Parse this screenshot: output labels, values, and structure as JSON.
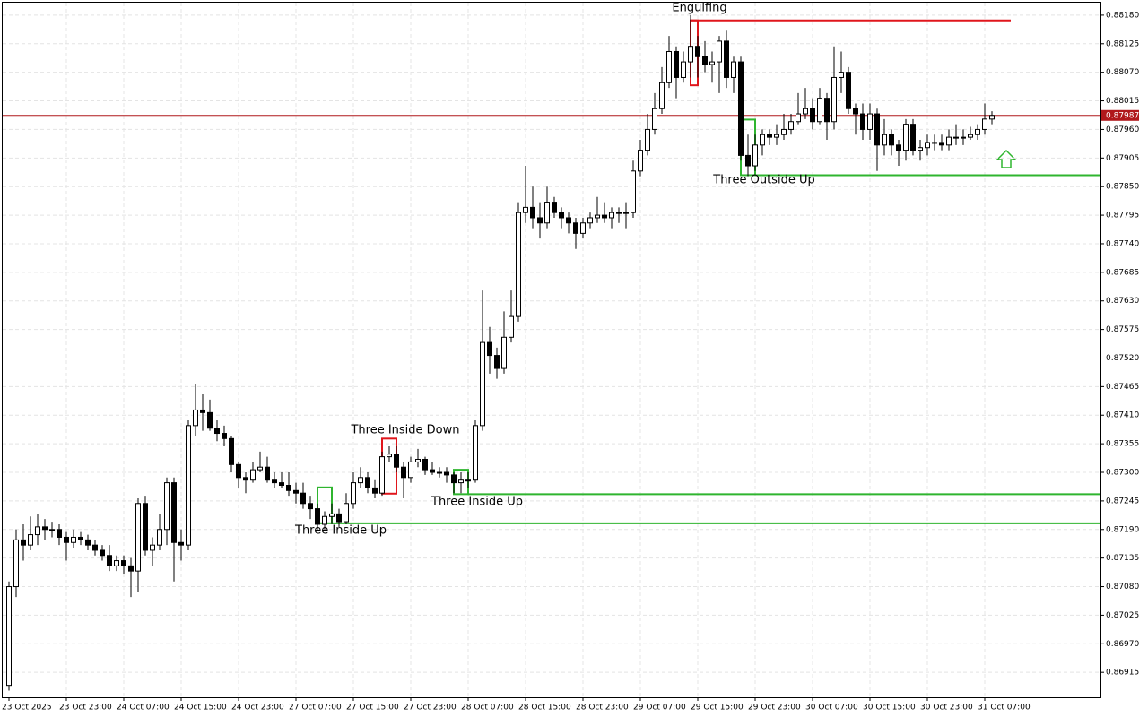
{
  "chart_data": {
    "type": "candlestick",
    "candles": [
      [
        0.8689,
        0.8709,
        0.8688,
        0.8708
      ],
      [
        0.8708,
        0.8719,
        0.8706,
        0.8717
      ],
      [
        0.8717,
        0.872,
        0.8713,
        0.8716
      ],
      [
        0.8716,
        0.87215,
        0.8715,
        0.8718
      ],
      [
        0.8718,
        0.8722,
        0.8716,
        0.87195
      ],
      [
        0.87195,
        0.8721,
        0.8717,
        0.8719
      ],
      [
        0.8719,
        0.87205,
        0.87175,
        0.8719
      ],
      [
        0.8719,
        0.872,
        0.8716,
        0.87175
      ],
      [
        0.87175,
        0.87185,
        0.8713,
        0.87165
      ],
      [
        0.87165,
        0.8719,
        0.87155,
        0.87175
      ],
      [
        0.87175,
        0.87185,
        0.8716,
        0.8717
      ],
      [
        0.8717,
        0.8718,
        0.8715,
        0.8716
      ],
      [
        0.8716,
        0.8717,
        0.8714,
        0.8715
      ],
      [
        0.8715,
        0.8716,
        0.8713,
        0.8714
      ],
      [
        0.8714,
        0.8716,
        0.8711,
        0.8712
      ],
      [
        0.8712,
        0.8714,
        0.8711,
        0.8713
      ],
      [
        0.8713,
        0.8714,
        0.87105,
        0.8712
      ],
      [
        0.8712,
        0.87135,
        0.8706,
        0.8711
      ],
      [
        0.8711,
        0.8725,
        0.8707,
        0.8724
      ],
      [
        0.8724,
        0.87255,
        0.8714,
        0.8715
      ],
      [
        0.8715,
        0.87175,
        0.8712,
        0.8716
      ],
      [
        0.8716,
        0.8722,
        0.8715,
        0.8719
      ],
      [
        0.8719,
        0.8729,
        0.8716,
        0.8728
      ],
      [
        0.8728,
        0.8729,
        0.8709,
        0.87165
      ],
      [
        0.87165,
        0.8719,
        0.8713,
        0.8716
      ],
      [
        0.8716,
        0.874,
        0.8715,
        0.8739
      ],
      [
        0.8739,
        0.8747,
        0.8737,
        0.8742
      ],
      [
        0.8742,
        0.8745,
        0.8738,
        0.87415
      ],
      [
        0.87415,
        0.8744,
        0.8738,
        0.87385
      ],
      [
        0.87385,
        0.874,
        0.8736,
        0.87375
      ],
      [
        0.87375,
        0.8739,
        0.8735,
        0.87365
      ],
      [
        0.87365,
        0.8737,
        0.873,
        0.87315
      ],
      [
        0.87315,
        0.8732,
        0.8727,
        0.8729
      ],
      [
        0.8729,
        0.873,
        0.8726,
        0.87285
      ],
      [
        0.87285,
        0.8732,
        0.8728,
        0.87305
      ],
      [
        0.87305,
        0.8734,
        0.873,
        0.8731
      ],
      [
        0.8731,
        0.8733,
        0.8728,
        0.87285
      ],
      [
        0.87285,
        0.873,
        0.8727,
        0.8728
      ],
      [
        0.8728,
        0.873,
        0.8727,
        0.87275
      ],
      [
        0.87275,
        0.873,
        0.87255,
        0.87265
      ],
      [
        0.87265,
        0.8728,
        0.8724,
        0.8726
      ],
      [
        0.8726,
        0.8728,
        0.8723,
        0.8724
      ],
      [
        0.8724,
        0.87255,
        0.8721,
        0.8723
      ],
      [
        0.8723,
        0.8724,
        0.8719,
        0.872
      ],
      [
        0.872,
        0.87225,
        0.8719,
        0.87215
      ],
      [
        0.87215,
        0.8724,
        0.872,
        0.8722
      ],
      [
        0.8722,
        0.8723,
        0.87195,
        0.87205
      ],
      [
        0.87205,
        0.8726,
        0.872,
        0.8724
      ],
      [
        0.8724,
        0.873,
        0.8723,
        0.8728
      ],
      [
        0.8728,
        0.8731,
        0.8727,
        0.8729
      ],
      [
        0.8729,
        0.873,
        0.8726,
        0.8727
      ],
      [
        0.8727,
        0.87285,
        0.8725,
        0.8726
      ],
      [
        0.8726,
        0.8734,
        0.87255,
        0.8733
      ],
      [
        0.8733,
        0.8735,
        0.8732,
        0.87335
      ],
      [
        0.87335,
        0.8735,
        0.873,
        0.8731
      ],
      [
        0.8731,
        0.8732,
        0.8725,
        0.8729
      ],
      [
        0.8729,
        0.8733,
        0.8728,
        0.8732
      ],
      [
        0.8732,
        0.87345,
        0.8731,
        0.87325
      ],
      [
        0.87325,
        0.8733,
        0.87295,
        0.87305
      ],
      [
        0.87305,
        0.8732,
        0.87295,
        0.873
      ],
      [
        0.873,
        0.8731,
        0.8729,
        0.873
      ],
      [
        0.873,
        0.8731,
        0.8728,
        0.87295
      ],
      [
        0.87295,
        0.873,
        0.8726,
        0.8728
      ],
      [
        0.8728,
        0.873,
        0.8726,
        0.87285
      ],
      [
        0.87285,
        0.873,
        0.8727,
        0.87285
      ],
      [
        0.87285,
        0.874,
        0.8728,
        0.8739
      ],
      [
        0.8739,
        0.8765,
        0.8738,
        0.8755
      ],
      [
        0.8755,
        0.8758,
        0.8749,
        0.87525
      ],
      [
        0.87525,
        0.8754,
        0.8748,
        0.875
      ],
      [
        0.875,
        0.8761,
        0.8749,
        0.8756
      ],
      [
        0.8756,
        0.8765,
        0.8755,
        0.876
      ],
      [
        0.876,
        0.8782,
        0.8759,
        0.878
      ],
      [
        0.878,
        0.8789,
        0.8778,
        0.8781
      ],
      [
        0.8781,
        0.8785,
        0.8777,
        0.8779
      ],
      [
        0.8779,
        0.8782,
        0.8775,
        0.8778
      ],
      [
        0.8778,
        0.8785,
        0.8777,
        0.8782
      ],
      [
        0.8782,
        0.8783,
        0.8779,
        0.878
      ],
      [
        0.878,
        0.8781,
        0.8777,
        0.8779
      ],
      [
        0.8779,
        0.878,
        0.8776,
        0.8778
      ],
      [
        0.8778,
        0.8779,
        0.8773,
        0.8776
      ],
      [
        0.8776,
        0.8779,
        0.8775,
        0.8778
      ],
      [
        0.8778,
        0.878,
        0.8777,
        0.8779
      ],
      [
        0.8779,
        0.8783,
        0.8778,
        0.87795
      ],
      [
        0.87795,
        0.8782,
        0.8778,
        0.8779
      ],
      [
        0.8779,
        0.8781,
        0.8777,
        0.878
      ],
      [
        0.878,
        0.8781,
        0.8778,
        0.878
      ],
      [
        0.878,
        0.8782,
        0.8777,
        0.878
      ],
      [
        0.878,
        0.879,
        0.8779,
        0.8788
      ],
      [
        0.8788,
        0.8794,
        0.8787,
        0.8792
      ],
      [
        0.8792,
        0.8799,
        0.8791,
        0.8796
      ],
      [
        0.8796,
        0.8803,
        0.8795,
        0.88
      ],
      [
        0.88,
        0.8808,
        0.8799,
        0.8805
      ],
      [
        0.8805,
        0.8814,
        0.8804,
        0.8811
      ],
      [
        0.8811,
        0.8812,
        0.8802,
        0.8806
      ],
      [
        0.8806,
        0.8811,
        0.8805,
        0.8809
      ],
      [
        0.8809,
        0.8818,
        0.8806,
        0.8812
      ],
      [
        0.8812,
        0.8814,
        0.8806,
        0.881
      ],
      [
        0.881,
        0.8813,
        0.8807,
        0.88085
      ],
      [
        0.88085,
        0.8811,
        0.8805,
        0.8809
      ],
      [
        0.8809,
        0.8814,
        0.8803,
        0.8813
      ],
      [
        0.8813,
        0.8815,
        0.8804,
        0.8806
      ],
      [
        0.8806,
        0.881,
        0.8803,
        0.8809
      ],
      [
        0.8809,
        0.881,
        0.879,
        0.8791
      ],
      [
        0.8791,
        0.8795,
        0.8787,
        0.8789
      ],
      [
        0.8789,
        0.8795,
        0.8788,
        0.8793
      ],
      [
        0.8793,
        0.8796,
        0.8791,
        0.8795
      ],
      [
        0.8795,
        0.8796,
        0.8793,
        0.87945
      ],
      [
        0.87945,
        0.8797,
        0.8793,
        0.8795
      ],
      [
        0.8795,
        0.8799,
        0.8794,
        0.8796
      ],
      [
        0.8796,
        0.8799,
        0.8795,
        0.87975
      ],
      [
        0.87975,
        0.8803,
        0.8797,
        0.8799
      ],
      [
        0.8799,
        0.8804,
        0.8798,
        0.88
      ],
      [
        0.88,
        0.8802,
        0.8796,
        0.87975
      ],
      [
        0.87975,
        0.8804,
        0.8797,
        0.8802
      ],
      [
        0.8802,
        0.8803,
        0.8794,
        0.87975
      ],
      [
        0.87975,
        0.8812,
        0.8796,
        0.8806
      ],
      [
        0.8806,
        0.8811,
        0.8803,
        0.8807
      ],
      [
        0.8807,
        0.8808,
        0.8799,
        0.88
      ],
      [
        0.88,
        0.8801,
        0.8795,
        0.8799
      ],
      [
        0.8799,
        0.8801,
        0.8794,
        0.8796
      ],
      [
        0.8796,
        0.8801,
        0.8794,
        0.8799
      ],
      [
        0.8799,
        0.88,
        0.8788,
        0.8793
      ],
      [
        0.8793,
        0.8798,
        0.8791,
        0.8795
      ],
      [
        0.8795,
        0.8796,
        0.8791,
        0.8793
      ],
      [
        0.8793,
        0.8794,
        0.8789,
        0.8792
      ],
      [
        0.8792,
        0.8798,
        0.879,
        0.8797
      ],
      [
        0.8797,
        0.8798,
        0.8791,
        0.8792
      ],
      [
        0.8792,
        0.8794,
        0.879,
        0.87925
      ],
      [
        0.87925,
        0.8795,
        0.8791,
        0.87935
      ],
      [
        0.87935,
        0.8795,
        0.8792,
        0.87935
      ],
      [
        0.87935,
        0.8795,
        0.8792,
        0.8793
      ],
      [
        0.8793,
        0.8796,
        0.8792,
        0.87945
      ],
      [
        0.87945,
        0.8797,
        0.8793,
        0.87945
      ],
      [
        0.87945,
        0.8796,
        0.8793,
        0.87945
      ],
      [
        0.87945,
        0.87965,
        0.8794,
        0.8795
      ],
      [
        0.8795,
        0.8797,
        0.8794,
        0.8796
      ],
      [
        0.8796,
        0.8801,
        0.8795,
        0.8798
      ],
      [
        0.8798,
        0.87995,
        0.8797,
        0.87987
      ]
    ],
    "x_labels": [
      "23 Oct 2025",
      "23 Oct 23:00",
      "24 Oct 07:00",
      "24 Oct 15:00",
      "24 Oct 23:00",
      "27 Oct 07:00",
      "27 Oct 15:00",
      "27 Oct 23:00",
      "28 Oct 07:00",
      "28 Oct 15:00",
      "28 Oct 23:00",
      "29 Oct 07:00",
      "29 Oct 15:00",
      "29 Oct 23:00",
      "30 Oct 07:00",
      "30 Oct 15:00",
      "30 Oct 23:00",
      "31 Oct 07:00"
    ],
    "ylim": [
      0.86867,
      0.88204
    ],
    "yticks": [
      {
        "value": 0.8818,
        "label": "0.88180"
      },
      0.88125,
      {
        "value": 0.8807,
        "label": "0.88070"
      },
      0.88015,
      {
        "value": 0.8796,
        "label": "0.87960"
      },
      0.87905,
      {
        "value": 0.8785,
        "label": "0.87850"
      },
      0.87795,
      {
        "value": 0.8774,
        "label": "0.87740"
      },
      0.87685,
      {
        "value": 0.8763,
        "label": "0.87630"
      },
      0.87575,
      {
        "value": 0.8752,
        "label": "0.87520"
      },
      0.87465,
      {
        "value": 0.8741,
        "label": "0.87410"
      },
      0.87355,
      {
        "value": 0.873,
        "label": "0.87300"
      },
      0.87245,
      {
        "value": 0.8719,
        "label": "0.87190"
      },
      0.87135,
      {
        "value": 0.8708,
        "label": "0.87080"
      },
      0.87025,
      {
        "value": 0.8697,
        "label": "0.86970"
      },
      0.86915
    ],
    "grid": true,
    "last_price": 0.87987,
    "bull_color": "#ffffff",
    "bear_color": "#000000",
    "annotations": [
      {
        "text": "Engulfing",
        "color": "#e0161c",
        "box": [
          0.8817,
          0.88045
        ],
        "level": 0.8817
      },
      {
        "text": "Three Inside Down",
        "color": "#e0161c",
        "box": [
          0.87365,
          0.87259
        ]
      },
      {
        "text": "Three Inside Up",
        "color": "#2fb52f",
        "box": [
          0.87271,
          0.87202
        ],
        "level": 0.87202
      },
      {
        "text": "Three Inside Up",
        "color": "#2fb52f",
        "box": [
          0.87305,
          0.87258
        ],
        "level": 0.87258
      },
      {
        "text": "Three Outside Up",
        "color": "#2fb52f",
        "box": [
          0.87979,
          0.87872
        ],
        "level": 0.87872
      }
    ]
  }
}
